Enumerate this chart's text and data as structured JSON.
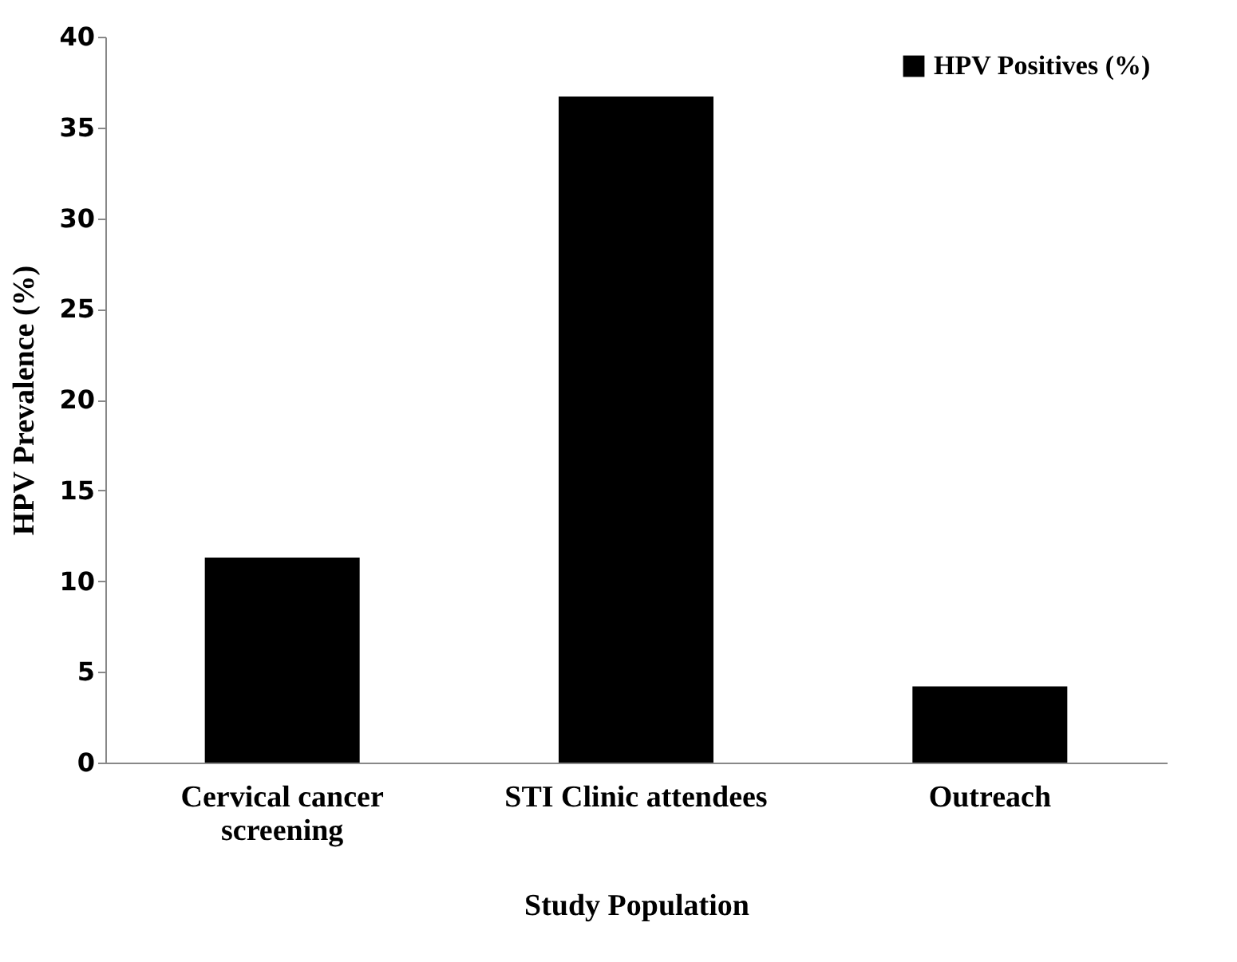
{
  "chart_data": {
    "type": "bar",
    "xlabel": "Study Population",
    "ylabel": "HPV Prevalence (%)",
    "categories": [
      "Cervical cancer screening",
      "STI Clinic attendees",
      "Outreach"
    ],
    "series": [
      {
        "name": "HPV Positives (%)",
        "color": "#000000",
        "values": [
          11.3,
          36.7,
          4.2
        ]
      }
    ],
    "ylim": [
      0,
      40
    ],
    "yticks": [
      0,
      5,
      10,
      15,
      20,
      25,
      30,
      35,
      40
    ],
    "grid": false,
    "legend": "top right"
  }
}
